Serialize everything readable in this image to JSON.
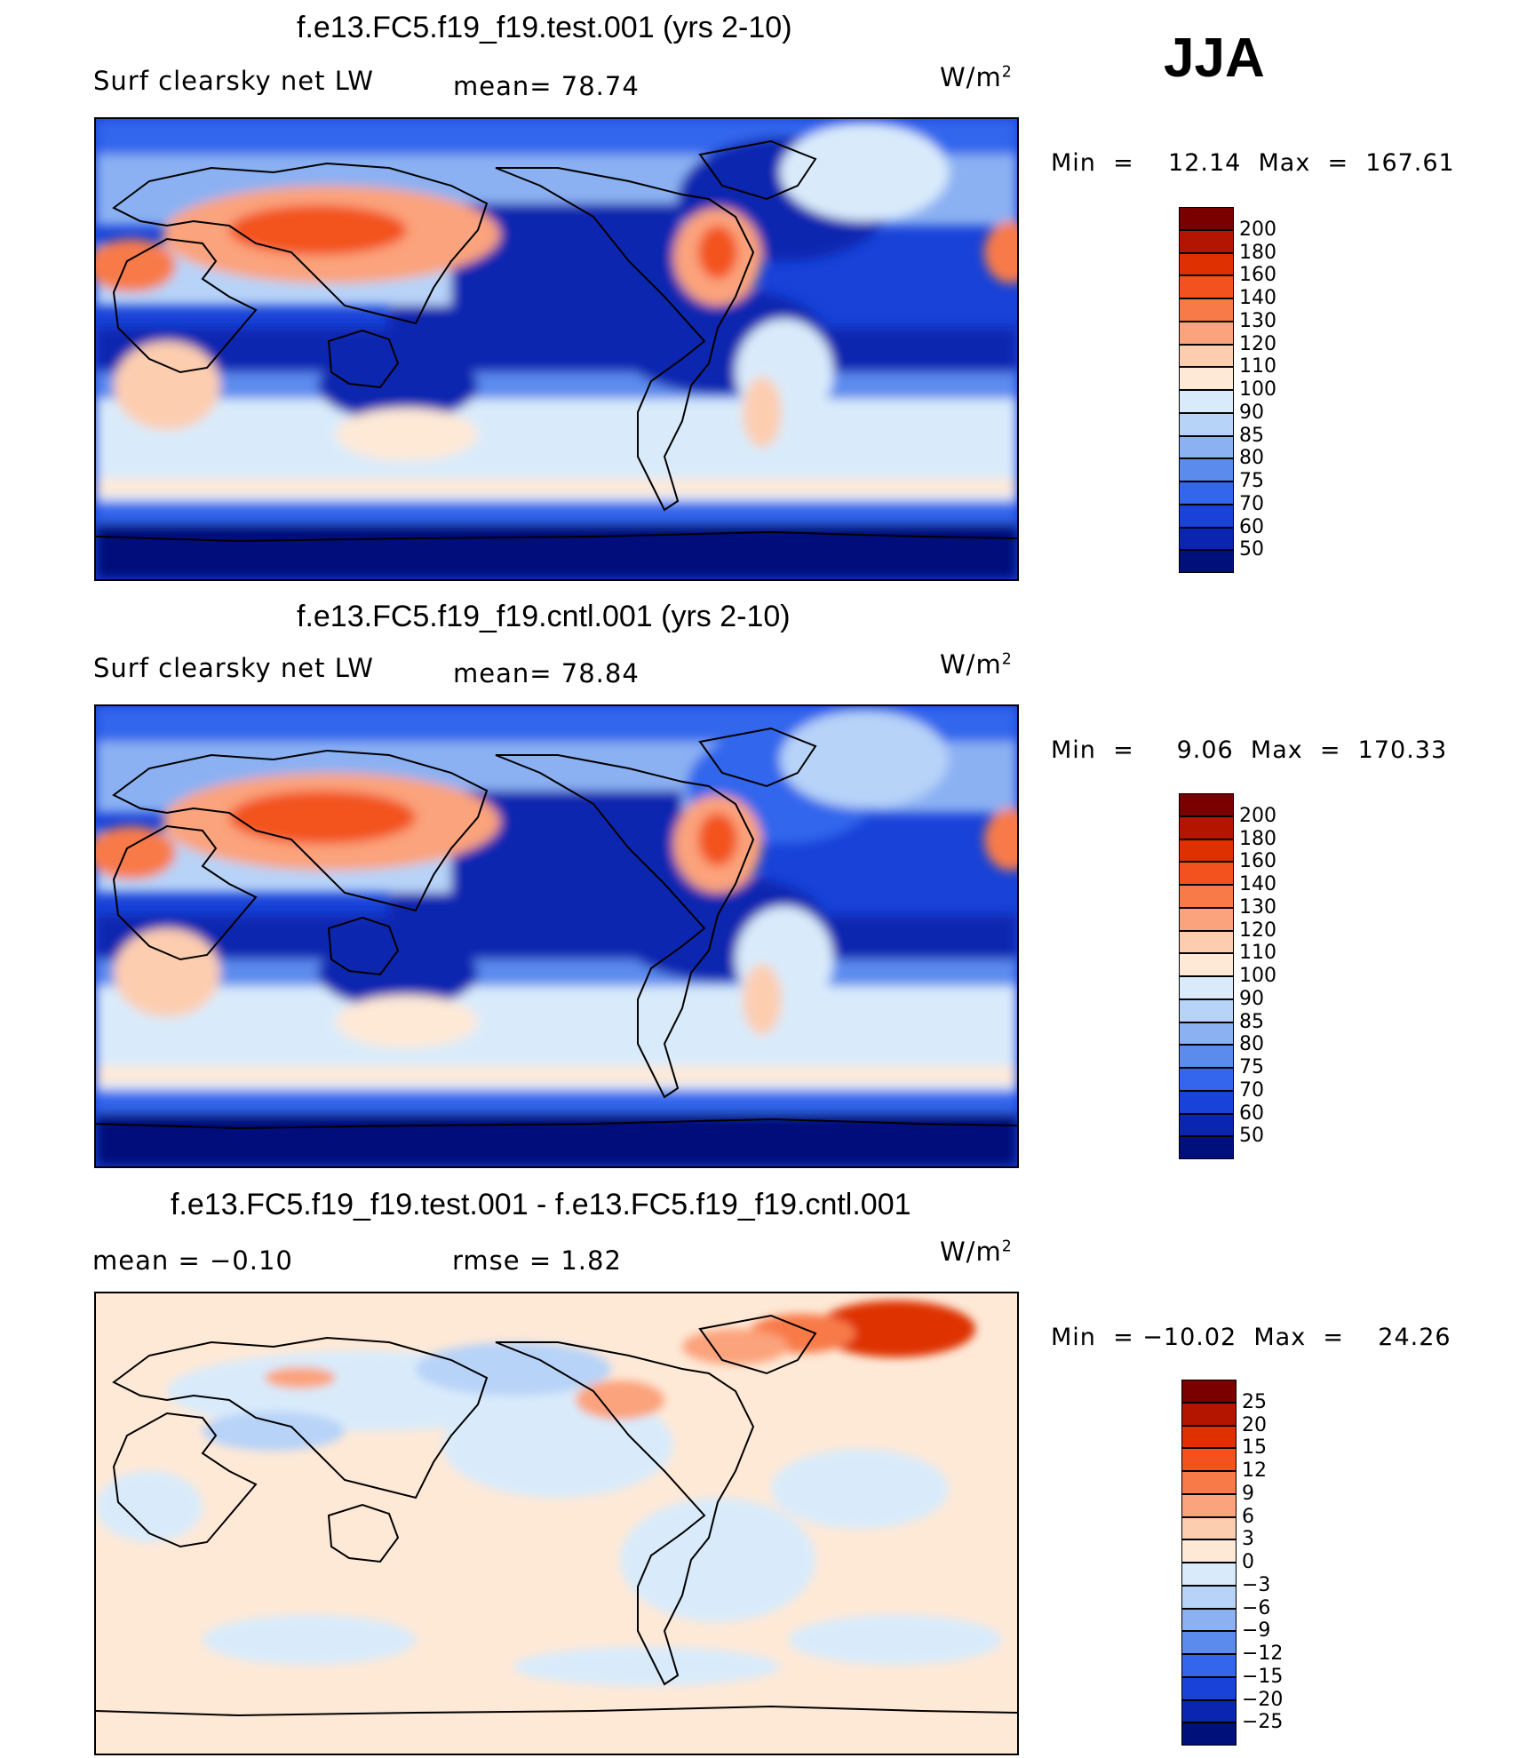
{
  "season": "JJA",
  "panels": [
    {
      "id": "test",
      "title": "f.e13.FC5.f19_f19.test.001 (yrs 2-10)",
      "left_label": "Surf  clearsky  net  LW",
      "mid_label": "mean=   78.74",
      "units_base": "W/m",
      "units_exp": "2",
      "minmax": "Min  =    12.14  Max  =  167.61",
      "colorbar": {
        "levels": [
          "200",
          "180",
          "160",
          "140",
          "130",
          "120",
          "110",
          "100",
          "90",
          "85",
          "80",
          "75",
          "70",
          "60",
          "50"
        ],
        "colors": [
          "#7a0000",
          "#b31500",
          "#de3000",
          "#f3521f",
          "#f87a48",
          "#fba37c",
          "#fdcdb0",
          "#fee9d7",
          "#d9ebfb",
          "#b7d3f8",
          "#8bb1f3",
          "#5c8bee",
          "#3366ec",
          "#1842d8",
          "#0a26b0",
          "#00107a"
        ]
      }
    },
    {
      "id": "cntl",
      "title": "f.e13.FC5.f19_f19.cntl.001 (yrs 2-10)",
      "left_label": "Surf  clearsky  net  LW",
      "mid_label": "mean=   78.84",
      "units_base": "W/m",
      "units_exp": "2",
      "minmax": "Min  =     9.06  Max  =  170.33",
      "colorbar": {
        "levels": [
          "200",
          "180",
          "160",
          "140",
          "130",
          "120",
          "110",
          "100",
          "90",
          "85",
          "80",
          "75",
          "70",
          "60",
          "50"
        ],
        "colors": [
          "#7a0000",
          "#b31500",
          "#de3000",
          "#f3521f",
          "#f87a48",
          "#fba37c",
          "#fdcdb0",
          "#fee9d7",
          "#d9ebfb",
          "#b7d3f8",
          "#8bb1f3",
          "#5c8bee",
          "#3366ec",
          "#1842d8",
          "#0a26b0",
          "#00107a"
        ]
      }
    },
    {
      "id": "diff",
      "title": "f.e13.FC5.f19_f19.test.001 - f.e13.FC5.f19_f19.cntl.001",
      "left_label": "mean  =    −0.10",
      "mid_label": "rmse  =     1.82",
      "units_base": "W/m",
      "units_exp": "2",
      "minmax": "Min  = −10.02  Max  =    24.26",
      "colorbar": {
        "levels": [
          "25",
          "20",
          "15",
          "12",
          "9",
          "6",
          "3",
          "0",
          "−3",
          "−6",
          "−9",
          "−12",
          "−15",
          "−20",
          "−25"
        ],
        "colors": [
          "#7a0000",
          "#b31500",
          "#de3000",
          "#f3521f",
          "#f87a48",
          "#fba37c",
          "#fdcdb0",
          "#fee9d7",
          "#d9ebfb",
          "#b7d3f8",
          "#8bb1f3",
          "#5c8bee",
          "#3366ec",
          "#1842d8",
          "#0a26b0",
          "#00107a"
        ]
      }
    }
  ]
}
